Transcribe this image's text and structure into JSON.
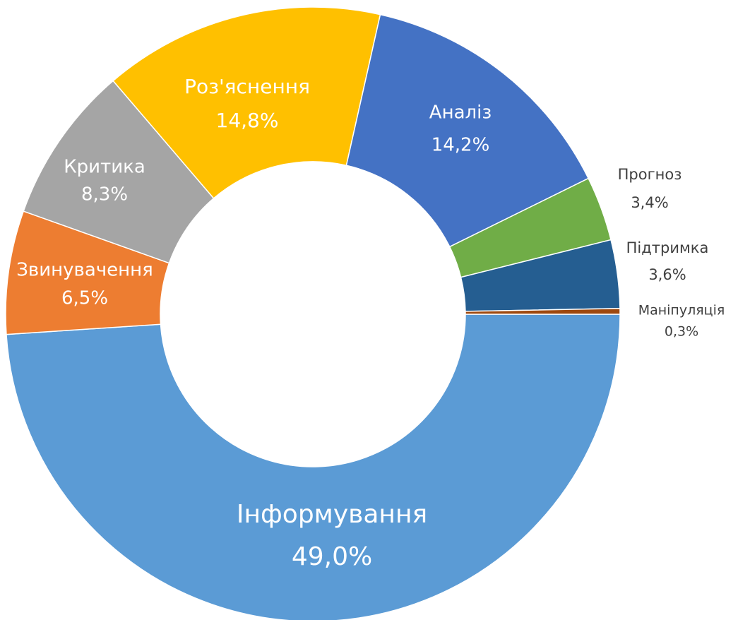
{
  "chart_data": {
    "type": "donut",
    "categories": [
      "Інформування",
      "Звинувачення",
      "Критика",
      "Роз'яснення",
      "Аналіз",
      "Прогноз",
      "Підтримка",
      "Маніпуляція"
    ],
    "values": [
      49.0,
      6.5,
      8.3,
      14.8,
      14.2,
      3.4,
      3.6,
      0.3
    ],
    "value_labels": [
      "49,0%",
      "6,5%",
      "8,3%",
      "14,8%",
      "14,2%",
      "3,4%",
      "3,6%",
      "0,3%"
    ],
    "colors": [
      "#5b9bd5",
      "#ed7d31",
      "#a5a5a5",
      "#ffc000",
      "#4472c4",
      "#70ad47",
      "#255e91",
      "#9e480e"
    ]
  }
}
